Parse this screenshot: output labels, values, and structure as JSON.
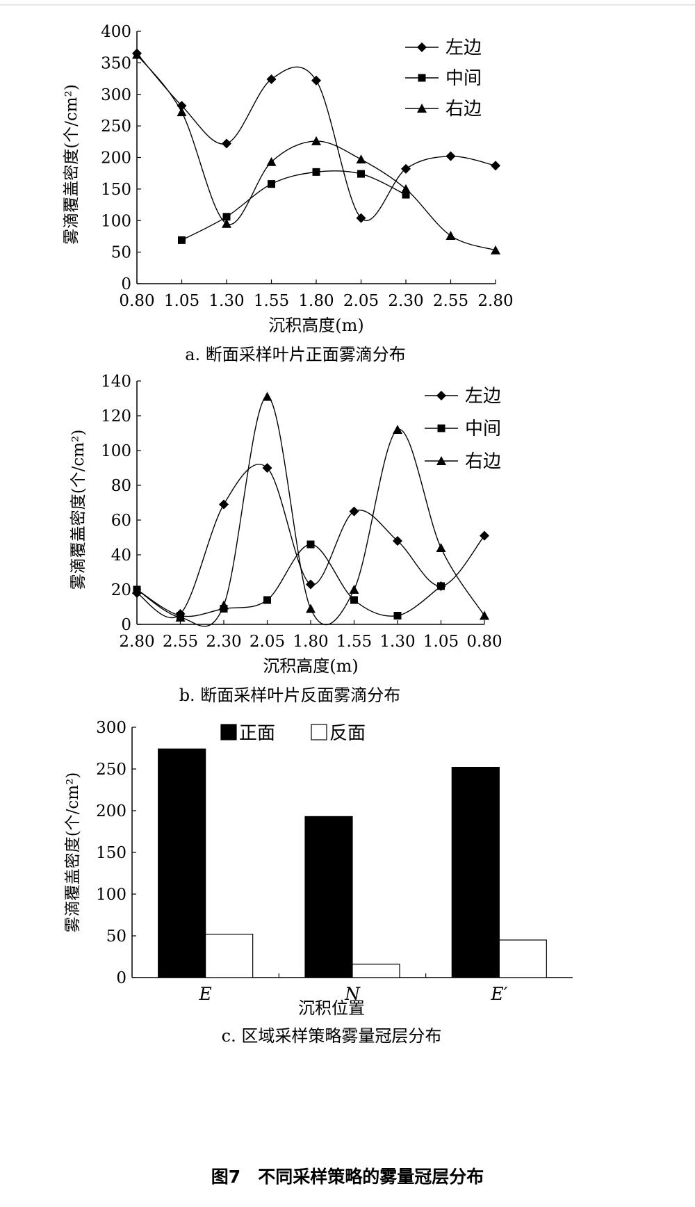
{
  "figure_title": "图7　不同采样策略的雾量冠层分布",
  "chart_data": [
    {
      "type": "line",
      "caption": "a. 断面采样叶片正面雾滴分布",
      "xlabel": "沉积高度(m)",
      "ylabel": "雾滴覆盖密度(个/cm²)",
      "x": [
        "0.80",
        "1.05",
        "1.30",
        "1.55",
        "1.80",
        "2.05",
        "2.30",
        "2.55",
        "2.80"
      ],
      "ylim": [
        0,
        400
      ],
      "yticks": [
        0,
        50,
        100,
        150,
        200,
        250,
        300,
        350,
        400
      ],
      "legend_position": "top-right",
      "series": [
        {
          "name": "左边",
          "marker": "diamond",
          "values": [
            365,
            282,
            222,
            324,
            322,
            104,
            182,
            202,
            187
          ]
        },
        {
          "name": "中间",
          "marker": "square",
          "values": [
            null,
            69,
            106,
            158,
            177,
            174,
            141,
            null,
            null
          ]
        },
        {
          "name": "右边",
          "marker": "triangle",
          "values": [
            363,
            272,
            95,
            193,
            226,
            197,
            150,
            76,
            53
          ]
        }
      ]
    },
    {
      "type": "line",
      "caption": "b. 断面采样叶片反面雾滴分布",
      "xlabel": "沉积高度(m)",
      "ylabel": "雾滴覆盖密度(个/cm²)",
      "x": [
        "2.80",
        "2.55",
        "2.30",
        "2.05",
        "1.80",
        "1.55",
        "1.30",
        "1.05",
        "0.80"
      ],
      "ylim": [
        0,
        140
      ],
      "yticks": [
        0,
        20,
        40,
        60,
        80,
        100,
        120,
        140
      ],
      "legend_position": "top-right",
      "series": [
        {
          "name": "左边",
          "marker": "diamond",
          "values": [
            18,
            6,
            69,
            90,
            23,
            65,
            48,
            22,
            51
          ]
        },
        {
          "name": "中间",
          "marker": "square",
          "values": [
            20,
            5,
            9,
            14,
            46,
            14,
            5,
            22,
            null
          ]
        },
        {
          "name": "右边",
          "marker": "triangle",
          "values": [
            20,
            4,
            11,
            131,
            9,
            20,
            112,
            44,
            5
          ]
        }
      ]
    },
    {
      "type": "bar",
      "caption": "c. 区域采样策略雾量冠层分布",
      "xlabel": "沉积位置",
      "ylabel": "雾滴覆盖密度(个/cm²)",
      "categories": [
        "E",
        "N",
        "E′"
      ],
      "ylim": [
        0,
        300
      ],
      "yticks": [
        0,
        50,
        100,
        150,
        200,
        250,
        300
      ],
      "legend_position": "top",
      "series": [
        {
          "name": "正面",
          "color": "#000000",
          "values": [
            274,
            193,
            252
          ]
        },
        {
          "name": "反面",
          "color": "#ffffff",
          "values": [
            52,
            16,
            45
          ]
        }
      ]
    }
  ]
}
